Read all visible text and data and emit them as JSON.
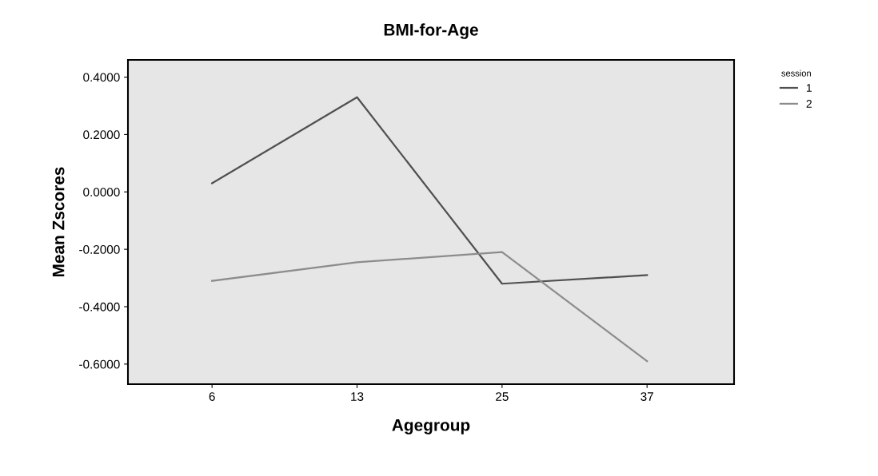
{
  "chart_data": {
    "type": "line",
    "title": "BMI-for-Age",
    "xlabel": "Agegroup",
    "ylabel": "Mean Zscores",
    "legend_title": "session",
    "categories": [
      "6",
      "13",
      "25",
      "37"
    ],
    "series": [
      {
        "name": "1",
        "color": "#505050",
        "values": [
          0.03,
          0.33,
          -0.32,
          -0.29
        ]
      },
      {
        "name": "2",
        "color": "#8c8c8c",
        "values": [
          -0.31,
          -0.245,
          -0.21,
          -0.59
        ]
      }
    ],
    "ylim": [
      -0.67,
      0.46
    ],
    "yticks": [
      {
        "value": -0.6,
        "label": "-0.6000"
      },
      {
        "value": -0.4,
        "label": "-0.4000"
      },
      {
        "value": -0.2,
        "label": "-0.2000"
      },
      {
        "value": 0,
        "label": "0.0000"
      },
      {
        "value": 0.2,
        "label": "0.2000"
      },
      {
        "value": 0.4,
        "label": "0.4000"
      }
    ],
    "legend": "top right",
    "grid": false,
    "marker": "none",
    "line_style": "solid"
  }
}
